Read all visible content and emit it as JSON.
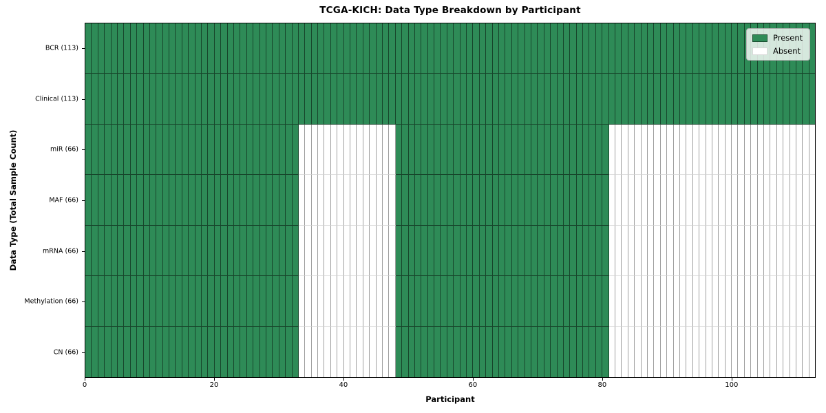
{
  "colors": {
    "present_green": "#2e8b57",
    "absent_white": "#ffffff"
  },
  "chart_data": {
    "type": "heatmap",
    "title": "TCGA-KICH: Data Type Breakdown by Participant",
    "xlabel": "Participant",
    "ylabel": "Data Type (Total Sample Count)",
    "x_range": [
      0,
      113
    ],
    "n_participants": 113,
    "xticks": [
      0,
      20,
      40,
      60,
      80,
      100
    ],
    "grid": false,
    "legend": {
      "position": "upper right",
      "entries": [
        {
          "label": "Present",
          "color": "#2e8b57"
        },
        {
          "label": "Absent",
          "color": "#ffffff"
        }
      ]
    },
    "rows": [
      {
        "label": "BCR (113)",
        "total_samples": 113,
        "present_segments": [
          [
            0,
            113
          ]
        ]
      },
      {
        "label": "Clinical (113)",
        "total_samples": 113,
        "present_segments": [
          [
            0,
            113
          ]
        ]
      },
      {
        "label": "miR (66)",
        "total_samples": 66,
        "present_segments": [
          [
            0,
            33
          ],
          [
            48,
            81
          ]
        ]
      },
      {
        "label": "MAF (66)",
        "total_samples": 66,
        "present_segments": [
          [
            0,
            33
          ],
          [
            48,
            81
          ]
        ]
      },
      {
        "label": "mRNA (66)",
        "total_samples": 66,
        "present_segments": [
          [
            0,
            33
          ],
          [
            48,
            81
          ]
        ]
      },
      {
        "label": "Methylation (66)",
        "total_samples": 66,
        "present_segments": [
          [
            0,
            33
          ],
          [
            48,
            81
          ]
        ]
      },
      {
        "label": "CN (66)",
        "total_samples": 66,
        "present_segments": [
          [
            0,
            33
          ],
          [
            48,
            81
          ]
        ]
      }
    ]
  }
}
